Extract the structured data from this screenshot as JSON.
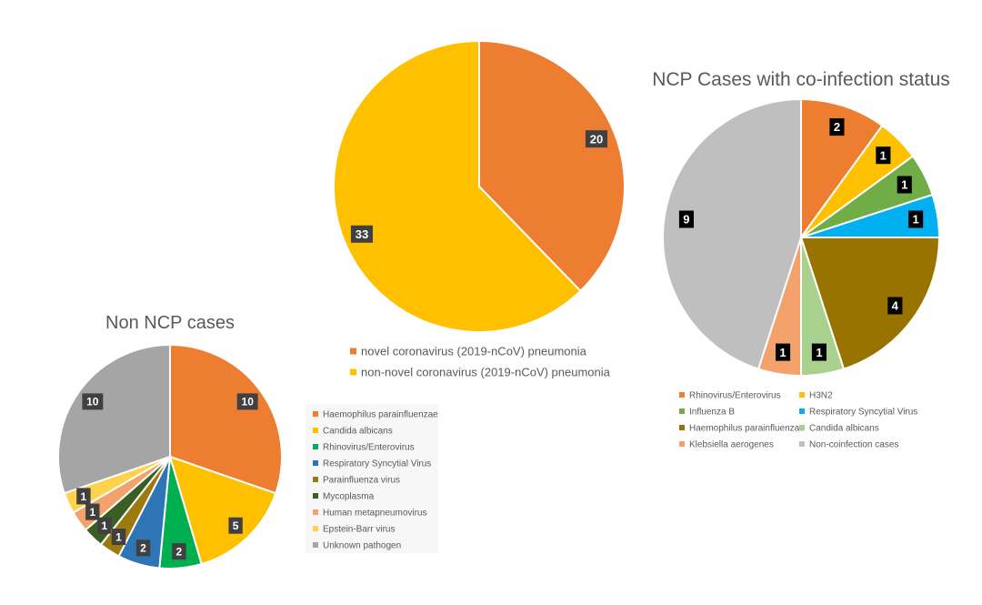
{
  "chart_data": [
    {
      "type": "pie",
      "id": "non-ncp",
      "title": "Non NCP cases",
      "slices": [
        {
          "label": "Haemophilus parainfluenzae",
          "value": 10,
          "color": "#ED7D31"
        },
        {
          "label": "Candida albicans",
          "value": 5,
          "color": "#FFC000"
        },
        {
          "label": "Rhinovirus/Enterovirus",
          "value": 2,
          "color": "#00B050"
        },
        {
          "label": "Respiratory Syncytial Virus",
          "value": 2,
          "color": "#2E75B6"
        },
        {
          "label": "Parainfluenza virus",
          "value": 1,
          "color": "#9C7A0B"
        },
        {
          "label": "Mycoplasma",
          "value": 1,
          "color": "#3A5E24"
        },
        {
          "label": "Human metapneumovirus",
          "value": 1,
          "color": "#F4A26B"
        },
        {
          "label": "Epstein-Barr virus",
          "value": 1,
          "color": "#FFD24D"
        },
        {
          "label": "Unknown pathogen",
          "value": 10,
          "color": "#A5A5A5"
        }
      ],
      "legend_position": "right"
    },
    {
      "type": "pie",
      "id": "ncp-total",
      "title": "",
      "slices": [
        {
          "label": "novel coronavirus (2019-nCoV) pneumonia",
          "value": 20,
          "color": "#ED7D31"
        },
        {
          "label": "non-novel coronavirus (2019-nCoV) pneumonia",
          "value": 33,
          "color": "#FFC000"
        }
      ],
      "legend_position": "bottom"
    },
    {
      "type": "pie",
      "id": "ncp-coinfection",
      "title": "NCP Cases with co-infection status",
      "slices": [
        {
          "label": "Rhinovirus/Enterovirus",
          "value": 2,
          "color": "#ED7D31"
        },
        {
          "label": "H3N2",
          "value": 1,
          "color": "#FFC000"
        },
        {
          "label": "Influenza B",
          "value": 1,
          "color": "#70AD47"
        },
        {
          "label": "Respiratory Syncytial Virus",
          "value": 1,
          "color": "#00B0F0"
        },
        {
          "label": "Haemophilus parainfluenzae",
          "value": 4,
          "color": "#997300"
        },
        {
          "label": "Candida albicans",
          "value": 1,
          "color": "#A9D18E"
        },
        {
          "label": "Klebsiella aerogenes",
          "value": 1,
          "color": "#F4A26B"
        },
        {
          "label": "Non-coinfection cases",
          "value": 9,
          "color": "#BFBFBF"
        }
      ],
      "legend_position": "bottom"
    }
  ]
}
